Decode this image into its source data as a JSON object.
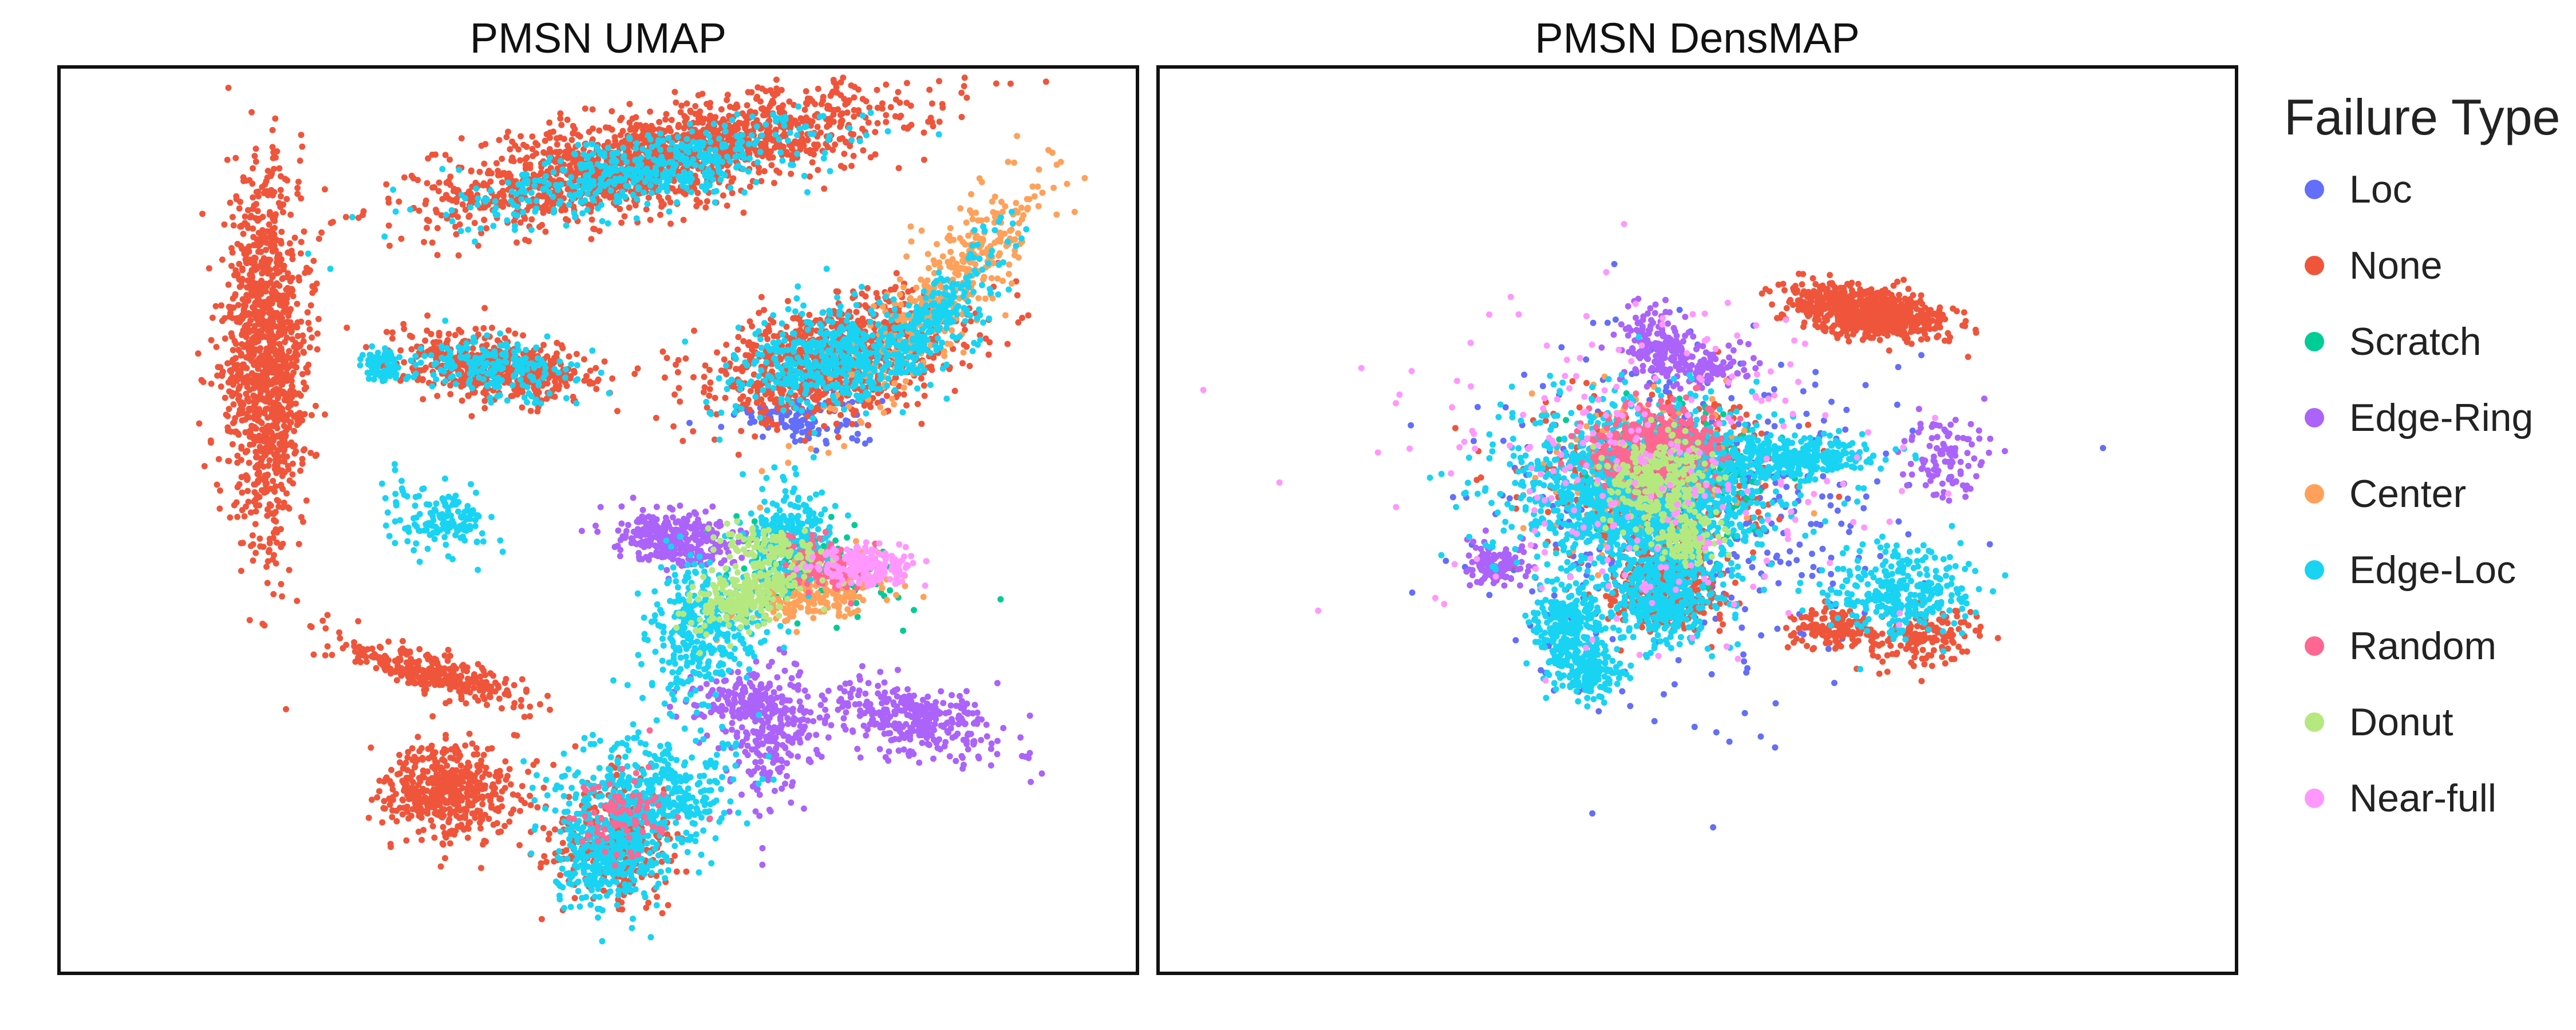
{
  "chart_data": [
    {
      "type": "scatter",
      "title": "PMSN UMAP",
      "xlabel": "",
      "ylabel": "",
      "grid": false,
      "legend": "shared, right",
      "series": [
        {
          "name": "Loc",
          "color": "#636efa",
          "clusters": [
            [
              0.69,
              0.39,
              0.06,
              0.03,
              120,
              0.03
            ]
          ]
        },
        {
          "name": "None",
          "color": "#ef553b",
          "clusters": [
            [
              0.55,
              0.1,
              0.22,
              0.05,
              1600,
              -0.25
            ],
            [
              0.19,
              0.32,
              0.04,
              0.2,
              1200,
              0.0
            ],
            [
              0.72,
              0.32,
              0.12,
              0.06,
              900,
              -0.3
            ],
            [
              0.4,
              0.33,
              0.09,
              0.035,
              500,
              0.15
            ],
            [
              0.36,
              0.8,
              0.06,
              0.05,
              500,
              0.0
            ],
            [
              0.51,
              0.86,
              0.06,
              0.07,
              300,
              0.0
            ],
            [
              0.35,
              0.67,
              0.1,
              0.02,
              300,
              0.35
            ]
          ]
        },
        {
          "name": "Scratch",
          "color": "#00cc96",
          "clusters": [
            [
              0.7,
              0.55,
              0.08,
              0.05,
              150,
              0.3
            ]
          ]
        },
        {
          "name": "Edge-Ring",
          "color": "#ab63fa",
          "clusters": [
            [
              0.57,
              0.52,
              0.06,
              0.03,
              300,
              0.1
            ],
            [
              0.66,
              0.73,
              0.04,
              0.08,
              250,
              0.0
            ],
            [
              0.79,
              0.72,
              0.09,
              0.04,
              350,
              0.25
            ],
            [
              0.63,
              0.7,
              0.05,
              0.03,
              120,
              0.0
            ]
          ]
        },
        {
          "name": "Center",
          "color": "#ffa15a",
          "clusters": [
            [
              0.82,
              0.25,
              0.04,
              0.17,
              400,
              0.6
            ],
            [
              0.71,
              0.58,
              0.07,
              0.03,
              200,
              -0.3
            ]
          ]
        },
        {
          "name": "Edge-Loc",
          "color": "#19d3f3",
          "clusters": [
            [
              0.55,
              0.11,
              0.18,
              0.04,
              500,
              -0.25
            ],
            [
              0.72,
              0.32,
              0.1,
              0.05,
              500,
              -0.3
            ],
            [
              0.4,
              0.33,
              0.08,
              0.03,
              200,
              0.15
            ],
            [
              0.55,
              0.8,
              0.08,
              0.06,
              400,
              0.0
            ],
            [
              0.51,
              0.87,
              0.05,
              0.06,
              400,
              0.0
            ],
            [
              0.6,
              0.62,
              0.05,
              0.08,
              350,
              0.2
            ],
            [
              0.68,
              0.52,
              0.04,
              0.06,
              250,
              0.0
            ],
            [
              0.35,
              0.5,
              0.05,
              0.04,
              150,
              0.6
            ],
            [
              0.3,
              0.33,
              0.02,
              0.02,
              80,
              0.0
            ],
            [
              0.82,
              0.27,
              0.03,
              0.1,
              200,
              0.6
            ]
          ]
        },
        {
          "name": "Random",
          "color": "#ff6692",
          "clusters": [
            [
              0.71,
              0.55,
              0.04,
              0.03,
              120,
              0.0
            ],
            [
              0.52,
              0.83,
              0.05,
              0.05,
              80,
              0.0
            ]
          ]
        },
        {
          "name": "Donut",
          "color": "#b6e880",
          "clusters": [
            [
              0.64,
              0.58,
              0.06,
              0.03,
              250,
              -0.4
            ],
            [
              0.66,
              0.53,
              0.05,
              0.02,
              100,
              0.2
            ]
          ]
        },
        {
          "name": "Near-full",
          "color": "#ff97ff",
          "clusters": [
            [
              0.75,
              0.55,
              0.04,
              0.02,
              200,
              0.0
            ]
          ]
        }
      ]
    },
    {
      "type": "scatter",
      "title": "PMSN DensMAP",
      "xlabel": "",
      "ylabel": "",
      "grid": false,
      "legend": "shared, right",
      "series": [
        {
          "name": "Loc",
          "color": "#636efa",
          "clusters": [
            [
              0.5,
              0.5,
              0.2,
              0.2,
              400,
              0.0
            ]
          ]
        },
        {
          "name": "None",
          "color": "#ef553b",
          "clusters": [
            [
              0.66,
              0.27,
              0.07,
              0.025,
              800,
              0.2
            ],
            [
              0.47,
              0.57,
              0.05,
              0.05,
              400,
              0.0
            ],
            [
              0.46,
              0.45,
              0.12,
              0.08,
              400,
              0.0
            ],
            [
              0.63,
              0.62,
              0.04,
              0.02,
              150,
              0.0
            ],
            [
              0.71,
              0.63,
              0.05,
              0.03,
              150,
              -0.2
            ]
          ]
        },
        {
          "name": "Scratch",
          "color": "#00cc96",
          "clusters": [
            [
              0.48,
              0.45,
              0.08,
              0.07,
              250,
              0.0
            ]
          ]
        },
        {
          "name": "Edge-Ring",
          "color": "#ab63fa",
          "clusters": [
            [
              0.46,
              0.3,
              0.03,
              0.04,
              150,
              0.0
            ],
            [
              0.31,
              0.55,
              0.03,
              0.02,
              120,
              0.0
            ],
            [
              0.51,
              0.33,
              0.05,
              0.02,
              120,
              0.0
            ],
            [
              0.73,
              0.43,
              0.04,
              0.05,
              100,
              0.0
            ]
          ]
        },
        {
          "name": "Center",
          "color": "#ffa15a",
          "clusters": [
            [
              0.45,
              0.45,
              0.1,
              0.08,
              250,
              0.0
            ]
          ]
        },
        {
          "name": "Edge-Loc",
          "color": "#19d3f3",
          "clusters": [
            [
              0.45,
              0.47,
              0.12,
              0.1,
              1500,
              0.0
            ],
            [
              0.59,
              0.43,
              0.07,
              0.02,
              300,
              0.0
            ],
            [
              0.69,
              0.58,
              0.06,
              0.05,
              300,
              0.0
            ],
            [
              0.47,
              0.58,
              0.05,
              0.06,
              400,
              0.0
            ],
            [
              0.4,
              0.67,
              0.03,
              0.03,
              150,
              0.0
            ],
            [
              0.38,
              0.62,
              0.03,
              0.05,
              250,
              0.0
            ]
          ]
        },
        {
          "name": "Random",
          "color": "#ff6692",
          "clusters": [
            [
              0.46,
              0.42,
              0.06,
              0.05,
              400,
              0.0
            ]
          ]
        },
        {
          "name": "Donut",
          "color": "#b6e880",
          "clusters": [
            [
              0.46,
              0.46,
              0.05,
              0.05,
              300,
              0.0
            ],
            [
              0.49,
              0.52,
              0.03,
              0.03,
              120,
              0.0
            ]
          ]
        },
        {
          "name": "Near-full",
          "color": "#ff97ff",
          "clusters": [
            [
              0.45,
              0.45,
              0.22,
              0.18,
              250,
              0.0
            ]
          ]
        }
      ]
    }
  ],
  "legend": {
    "title": "Failure Type",
    "items": [
      {
        "label": "Loc",
        "color": "#636efa"
      },
      {
        "label": "None",
        "color": "#ef553b"
      },
      {
        "label": "Scratch",
        "color": "#00cc96"
      },
      {
        "label": "Edge-Ring",
        "color": "#ab63fa"
      },
      {
        "label": "Center",
        "color": "#ffa15a"
      },
      {
        "label": "Edge-Loc",
        "color": "#19d3f3"
      },
      {
        "label": "Random",
        "color": "#ff6692"
      },
      {
        "label": "Donut",
        "color": "#b6e880"
      },
      {
        "label": "Near-full",
        "color": "#ff97ff"
      }
    ]
  }
}
